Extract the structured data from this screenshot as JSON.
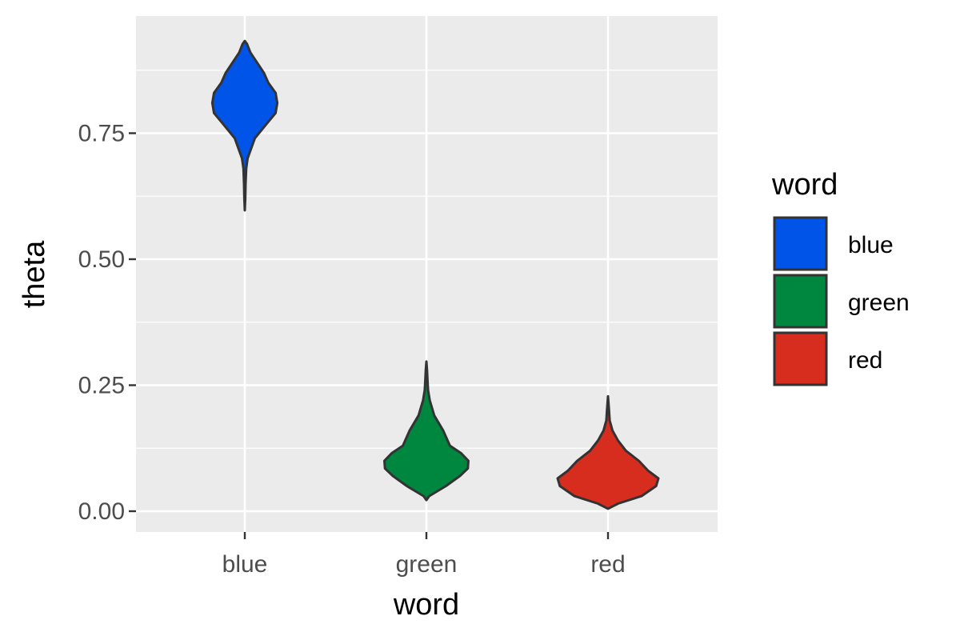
{
  "chart_data": {
    "type": "violin",
    "xlabel": "word",
    "ylabel": "theta",
    "categories": [
      "blue",
      "green",
      "red"
    ],
    "ylim": [
      -0.04,
      0.99
    ],
    "yticks": [
      0.0,
      0.25,
      0.5,
      0.75
    ],
    "ytick_labels": [
      "0.00",
      "0.25",
      "0.50",
      "0.75"
    ],
    "grid": true,
    "legend": {
      "title": "word",
      "position": "right",
      "entries": [
        "blue",
        "green",
        "red"
      ]
    },
    "colors": {
      "blue": "#0055e8",
      "green": "#00873f",
      "red": "#d62d1f",
      "panel": "#ebebeb",
      "grid": "#ffffff",
      "outline": "#333333"
    },
    "series": [
      {
        "name": "blue",
        "density": [
          [
            0.597,
            0.0
          ],
          [
            0.62,
            0.008
          ],
          [
            0.65,
            0.014
          ],
          [
            0.68,
            0.025
          ],
          [
            0.7,
            0.05
          ],
          [
            0.74,
            0.18
          ],
          [
            0.77,
            0.4
          ],
          [
            0.79,
            0.55
          ],
          [
            0.81,
            0.58
          ],
          [
            0.83,
            0.55
          ],
          [
            0.85,
            0.42
          ],
          [
            0.87,
            0.34
          ],
          [
            0.89,
            0.22
          ],
          [
            0.91,
            0.1
          ],
          [
            0.927,
            0.04
          ],
          [
            0.933,
            0.0
          ]
        ]
      },
      {
        "name": "green",
        "density": [
          [
            0.022,
            0.0
          ],
          [
            0.03,
            0.05
          ],
          [
            0.05,
            0.35
          ],
          [
            0.07,
            0.6
          ],
          [
            0.085,
            0.74
          ],
          [
            0.1,
            0.75
          ],
          [
            0.115,
            0.62
          ],
          [
            0.13,
            0.42
          ],
          [
            0.16,
            0.3
          ],
          [
            0.19,
            0.14
          ],
          [
            0.22,
            0.06
          ],
          [
            0.24,
            0.03
          ],
          [
            0.26,
            0.02
          ],
          [
            0.28,
            0.012
          ],
          [
            0.297,
            0.0
          ]
        ]
      },
      {
        "name": "red",
        "density": [
          [
            0.005,
            0.0
          ],
          [
            0.015,
            0.18
          ],
          [
            0.03,
            0.6
          ],
          [
            0.05,
            0.86
          ],
          [
            0.065,
            0.9
          ],
          [
            0.08,
            0.72
          ],
          [
            0.1,
            0.55
          ],
          [
            0.12,
            0.32
          ],
          [
            0.14,
            0.18
          ],
          [
            0.16,
            0.08
          ],
          [
            0.18,
            0.03
          ],
          [
            0.2,
            0.018
          ],
          [
            0.228,
            0.0
          ]
        ]
      }
    ]
  }
}
